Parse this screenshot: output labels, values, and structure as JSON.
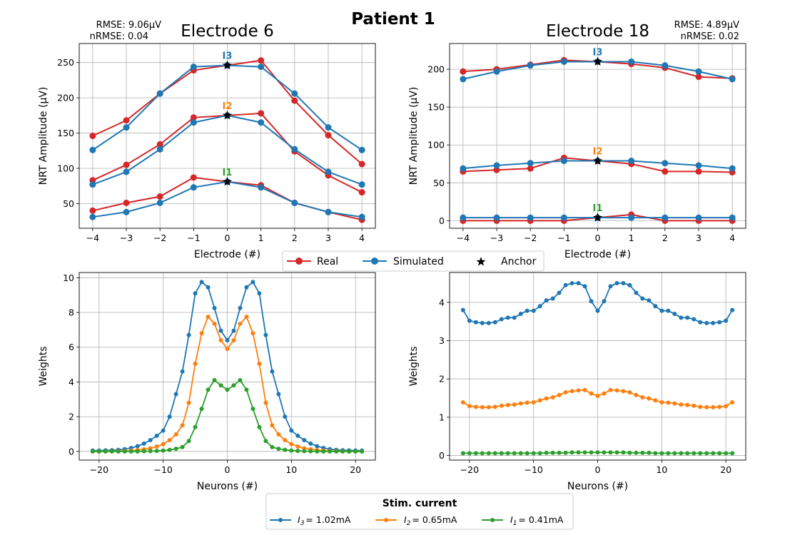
{
  "figure_title": "Patient 1",
  "colors": {
    "real": "#d62728",
    "simulated": "#1f77b4",
    "anchor": "#000000",
    "i3": "#1f77b4",
    "i2": "#ff7f0e",
    "i1": "#2ca02c",
    "grid": "#b0b0b0"
  },
  "legend_top": {
    "items": [
      {
        "label": "Real",
        "marker": "circle",
        "color": "#d62728"
      },
      {
        "label": "Simulated",
        "marker": "circle",
        "color": "#1f77b4"
      },
      {
        "label": "Anchor",
        "marker": "star",
        "color": "#000000"
      }
    ]
  },
  "legend_bottom": {
    "title": "Stim. current",
    "items": [
      {
        "name": "I",
        "sub": "3",
        "value": "= 1.02mA",
        "color": "#1f77b4"
      },
      {
        "name": "I",
        "sub": "2",
        "value": "= 0.65mA",
        "color": "#ff7f0e"
      },
      {
        "name": "I",
        "sub": "1",
        "value": "= 0.41mA",
        "color": "#2ca02c"
      }
    ]
  },
  "chart_data": [
    {
      "type": "line",
      "title": "Electrode 6",
      "metrics": {
        "rmse": "RMSE: 9.06μV",
        "nrmse": "nRMSE: 0.04"
      },
      "xlabel": "Electrode (#)",
      "ylabel": "NRT Amplitude (μV)",
      "x": [
        -4,
        -3,
        -2,
        -1,
        0,
        1,
        2,
        3,
        4
      ],
      "xticks": [
        "−4",
        "−3",
        "−2",
        "−1",
        "0",
        "1",
        "2",
        "3",
        "4"
      ],
      "yticks": [
        50,
        100,
        150,
        200,
        250
      ],
      "xlim": [
        -4.4,
        4.4
      ],
      "ylim": [
        15,
        277
      ],
      "grid": true,
      "series": [
        {
          "name": "Real",
          "level": "I1",
          "values": [
            40,
            51,
            60,
            87,
            81,
            76,
            51,
            38,
            27
          ]
        },
        {
          "name": "Simulated",
          "level": "I1",
          "values": [
            31,
            38,
            51,
            73,
            81,
            73,
            51,
            38,
            31
          ]
        },
        {
          "name": "Real",
          "level": "I2",
          "values": [
            83,
            105,
            134,
            172,
            175,
            178,
            124,
            90,
            66
          ]
        },
        {
          "name": "Simulated",
          "level": "I2",
          "values": [
            77,
            95,
            127,
            165,
            175,
            165,
            127,
            95,
            77
          ]
        },
        {
          "name": "Real",
          "level": "I3",
          "values": [
            146,
            168,
            206,
            239,
            246,
            253,
            196,
            147,
            106
          ]
        },
        {
          "name": "Simulated",
          "level": "I3",
          "values": [
            126,
            158,
            206,
            244,
            246,
            244,
            206,
            158,
            126
          ]
        }
      ],
      "anchors": [
        {
          "x": 0,
          "y": 81,
          "label": "I1"
        },
        {
          "x": 0,
          "y": 175,
          "label": "I2"
        },
        {
          "x": 0,
          "y": 246,
          "label": "I3"
        }
      ]
    },
    {
      "type": "line",
      "title": "Electrode 18",
      "metrics": {
        "rmse": "RMSE: 4.89μV",
        "nrmse": "nRMSE: 0.02"
      },
      "xlabel": "Electrode (#)",
      "ylabel": "NRT Amplitude (μV)",
      "x": [
        -4,
        -3,
        -2,
        -1,
        0,
        1,
        2,
        3,
        4
      ],
      "xticks": [
        "−4",
        "−3",
        "−2",
        "−1",
        "0",
        "1",
        "2",
        "3",
        "4"
      ],
      "yticks": [
        0,
        50,
        100,
        150,
        200
      ],
      "xlim": [
        -4.4,
        4.4
      ],
      "ylim": [
        -10,
        234
      ],
      "grid": true,
      "series": [
        {
          "name": "Real",
          "level": "I1",
          "values": [
            0,
            0,
            0,
            0,
            4,
            8,
            0,
            0,
            0
          ]
        },
        {
          "name": "Simulated",
          "level": "I1",
          "values": [
            4,
            4,
            4,
            4,
            4,
            4,
            4,
            4,
            4
          ]
        },
        {
          "name": "Real",
          "level": "I2",
          "values": [
            65,
            67,
            69,
            83,
            79,
            75,
            65,
            65,
            64
          ]
        },
        {
          "name": "Simulated",
          "level": "I2",
          "values": [
            69,
            73,
            76,
            79,
            79,
            79,
            76,
            73,
            69
          ]
        },
        {
          "name": "Real",
          "level": "I3",
          "values": [
            197,
            200,
            206,
            212,
            210,
            207,
            202,
            190,
            188
          ]
        },
        {
          "name": "Simulated",
          "level": "I3",
          "values": [
            187,
            197,
            205,
            210,
            210,
            210,
            205,
            197,
            187
          ]
        }
      ],
      "anchors": [
        {
          "x": 0,
          "y": 4,
          "label": "I1"
        },
        {
          "x": 0,
          "y": 79,
          "label": "I2"
        },
        {
          "x": 0,
          "y": 210,
          "label": "I3"
        }
      ]
    },
    {
      "type": "line",
      "xlabel": "Neurons (#)",
      "ylabel": "Weights",
      "x_start": -21,
      "xticks": [
        -20,
        -10,
        0,
        10,
        20
      ],
      "xtick_labels": [
        "−20",
        "−10",
        "0",
        "10",
        "20"
      ],
      "yticks": [
        0,
        2,
        4,
        6,
        8,
        10
      ],
      "xlim": [
        -23.1,
        23.1
      ],
      "ylim": [
        -0.5,
        10.3
      ],
      "grid": true,
      "series": [
        {
          "name": "I3",
          "values": [
            0.05,
            0.05,
            0.06,
            0.07,
            0.09,
            0.13,
            0.2,
            0.3,
            0.45,
            0.65,
            0.9,
            1.2,
            2.0,
            3.3,
            4.6,
            6.7,
            9.1,
            9.75,
            9.45,
            8.25,
            6.95,
            6.4,
            6.95,
            8.25,
            9.45,
            9.75,
            9.1,
            6.7,
            4.6,
            3.3,
            2.0,
            1.2,
            0.9,
            0.65,
            0.45,
            0.3,
            0.2,
            0.13,
            0.09,
            0.07,
            0.06,
            0.05,
            0.05
          ]
        },
        {
          "name": "I2",
          "values": [
            0,
            0,
            0,
            0.01,
            0.02,
            0.03,
            0.05,
            0.08,
            0.12,
            0.18,
            0.28,
            0.42,
            0.65,
            0.98,
            1.5,
            2.8,
            5.05,
            6.8,
            7.75,
            7.35,
            6.4,
            5.9,
            6.4,
            7.35,
            7.75,
            6.8,
            5.05,
            2.8,
            1.5,
            0.98,
            0.65,
            0.42,
            0.28,
            0.18,
            0.12,
            0.08,
            0.05,
            0.03,
            0.02,
            0.01,
            0,
            0,
            0
          ]
        },
        {
          "name": "I1",
          "values": [
            0,
            0,
            0,
            0,
            0,
            0,
            0,
            0,
            0.01,
            0.02,
            0.03,
            0.05,
            0.09,
            0.15,
            0.25,
            0.6,
            1.4,
            2.45,
            3.55,
            4.1,
            3.8,
            3.55,
            3.8,
            4.1,
            3.55,
            2.45,
            1.4,
            0.6,
            0.25,
            0.15,
            0.09,
            0.05,
            0.03,
            0.02,
            0.01,
            0,
            0,
            0,
            0,
            0,
            0,
            0,
            0
          ]
        }
      ]
    },
    {
      "type": "line",
      "xlabel": "Neurons (#)",
      "ylabel": "Weights",
      "x_start": -21,
      "xticks": [
        -20,
        -10,
        0,
        10,
        20
      ],
      "xtick_labels": [
        "−20",
        "−10",
        "0",
        "10",
        "20"
      ],
      "yticks": [
        0,
        1,
        2,
        3,
        4
      ],
      "xlim": [
        -23.1,
        23.1
      ],
      "ylim": [
        -0.12,
        4.78
      ],
      "grid": true,
      "series": [
        {
          "name": "I3",
          "values": [
            3.8,
            3.52,
            3.48,
            3.46,
            3.46,
            3.48,
            3.56,
            3.6,
            3.6,
            3.7,
            3.78,
            3.78,
            3.9,
            4.05,
            4.1,
            4.25,
            4.45,
            4.5,
            4.5,
            4.42,
            4.03,
            3.78,
            4.03,
            4.42,
            4.5,
            4.5,
            4.45,
            4.25,
            4.1,
            4.05,
            3.9,
            3.78,
            3.78,
            3.7,
            3.6,
            3.6,
            3.56,
            3.48,
            3.46,
            3.46,
            3.48,
            3.52,
            3.8
          ]
        },
        {
          "name": "I2",
          "values": [
            1.39,
            1.29,
            1.27,
            1.26,
            1.26,
            1.27,
            1.3,
            1.32,
            1.33,
            1.36,
            1.38,
            1.39,
            1.44,
            1.49,
            1.52,
            1.58,
            1.65,
            1.68,
            1.7,
            1.71,
            1.62,
            1.56,
            1.62,
            1.71,
            1.7,
            1.68,
            1.65,
            1.58,
            1.52,
            1.49,
            1.44,
            1.39,
            1.38,
            1.36,
            1.33,
            1.32,
            1.3,
            1.27,
            1.26,
            1.26,
            1.27,
            1.29,
            1.39
          ]
        },
        {
          "name": "I1",
          "values": [
            0.06,
            0.06,
            0.06,
            0.06,
            0.06,
            0.06,
            0.06,
            0.06,
            0.06,
            0.06,
            0.06,
            0.06,
            0.06,
            0.07,
            0.07,
            0.07,
            0.07,
            0.08,
            0.08,
            0.08,
            0.08,
            0.08,
            0.08,
            0.08,
            0.08,
            0.08,
            0.07,
            0.07,
            0.07,
            0.07,
            0.06,
            0.06,
            0.06,
            0.06,
            0.06,
            0.06,
            0.06,
            0.06,
            0.06,
            0.06,
            0.06,
            0.06,
            0.06
          ]
        }
      ]
    }
  ]
}
